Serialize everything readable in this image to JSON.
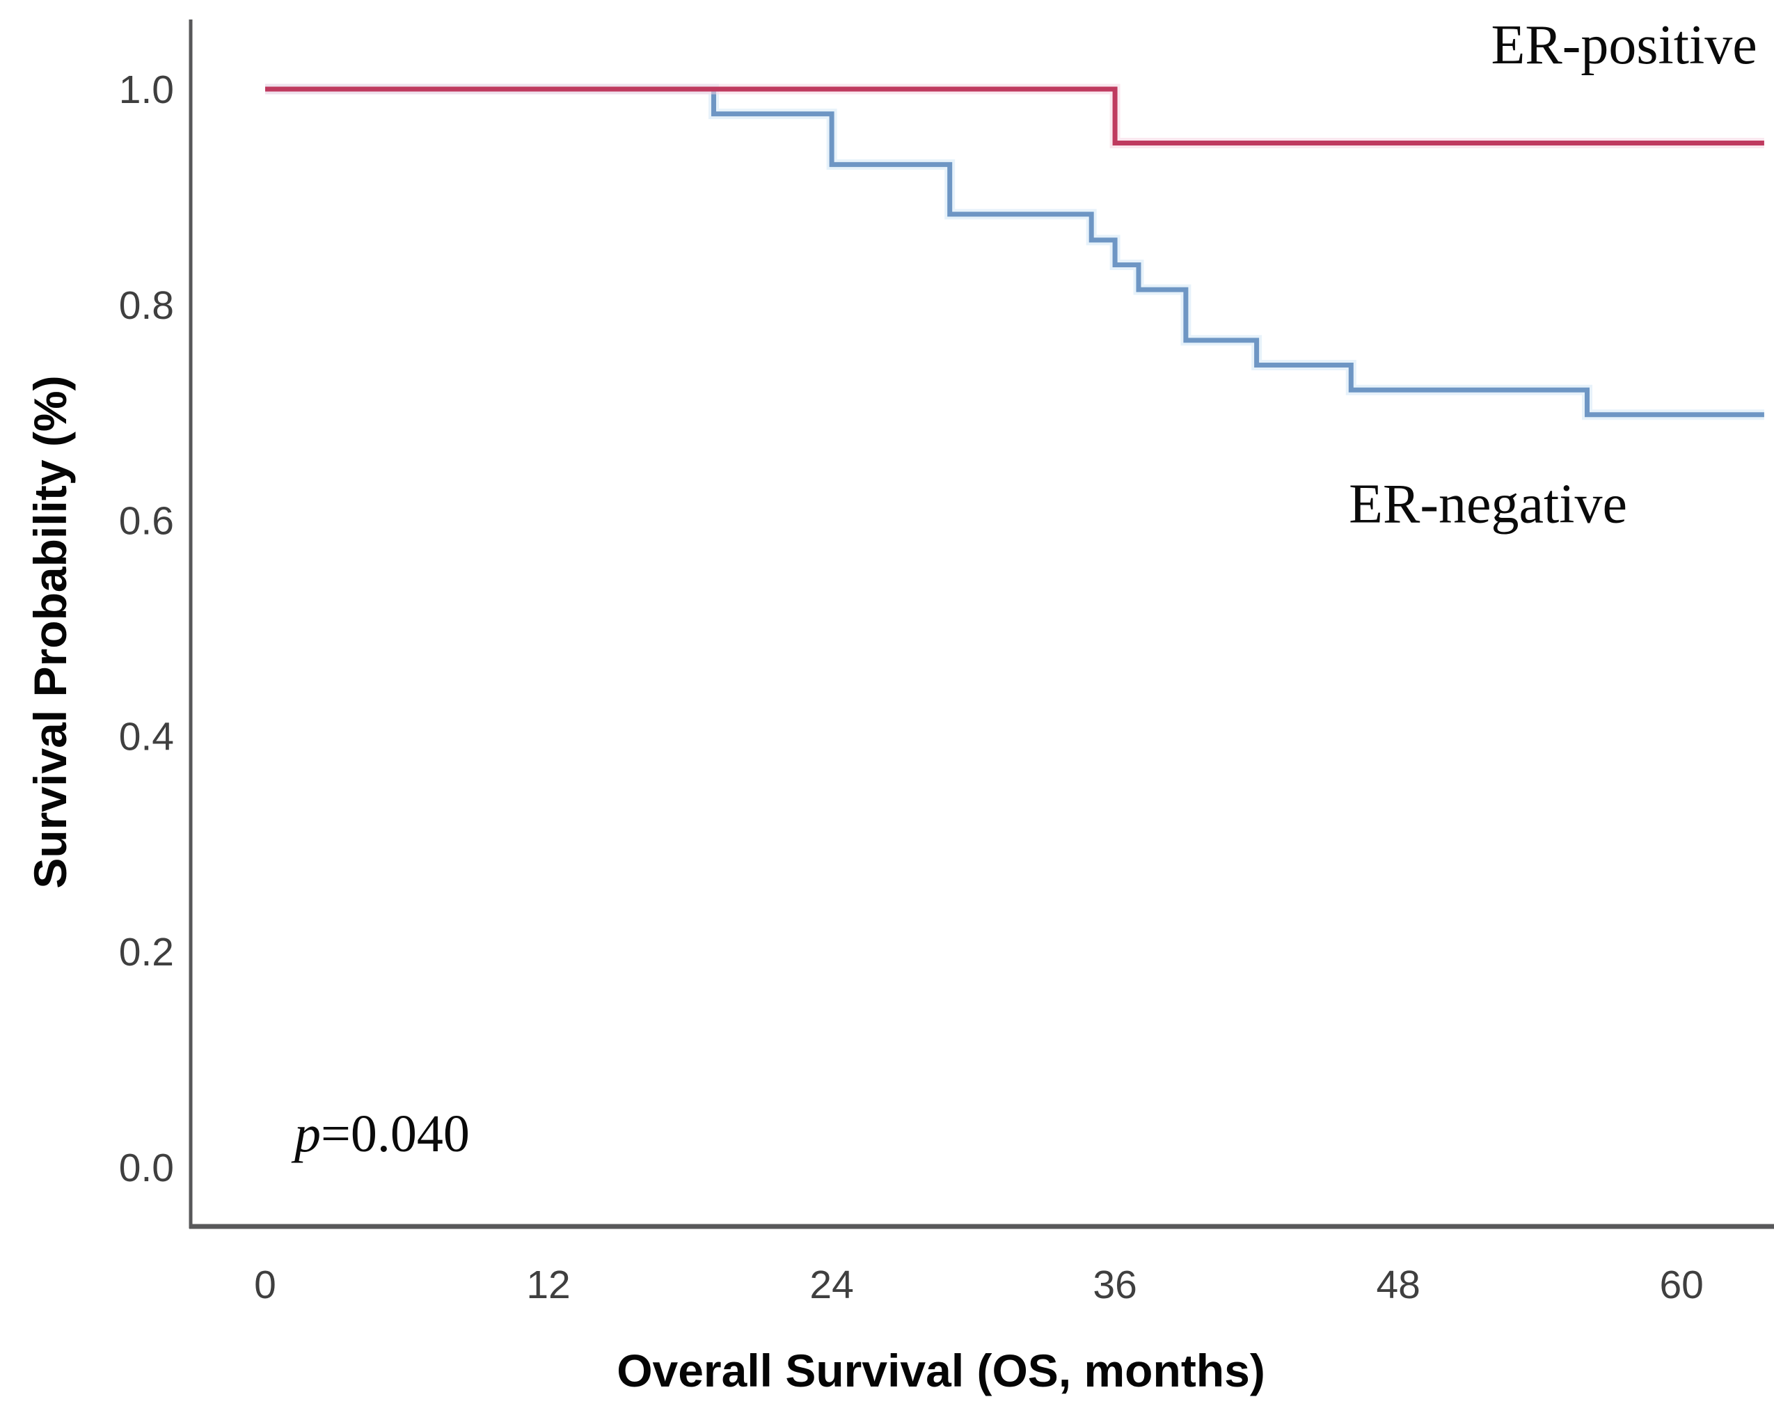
{
  "chart_data": {
    "type": "line",
    "variant": "kaplan-meier-step",
    "title": "",
    "xlabel": "Overall Survival (OS, months)",
    "ylabel": "Survival Probability (%)",
    "xlim": [
      0,
      63.5
    ],
    "ylim": [
      0.0,
      1.05
    ],
    "xticks": [
      "0",
      "12",
      "24",
      "36",
      "48",
      "60"
    ],
    "xtick_values": [
      0,
      12,
      24,
      36,
      48,
      60
    ],
    "yticks": [
      "0.0",
      "0.2",
      "0.4",
      "0.6",
      "0.8",
      "1.0"
    ],
    "ytick_values": [
      0.0,
      0.2,
      0.4,
      0.6,
      0.8,
      1.0
    ],
    "grid": false,
    "legend_position": "inline-annotations",
    "axis_color": "#58585a",
    "tick_label_color": "#3f3f3f",
    "p_value": {
      "italic": "p",
      "text": "=0.040"
    },
    "series": [
      {
        "name": "ER-negative",
        "color": "#6e96c4",
        "halo_color": "#d4e8f6",
        "points": [
          [
            0,
            1.0
          ],
          [
            19,
            1.0
          ],
          [
            19,
            0.977
          ],
          [
            24,
            0.977
          ],
          [
            24,
            0.93
          ],
          [
            29,
            0.93
          ],
          [
            29,
            0.884
          ],
          [
            35,
            0.884
          ],
          [
            35,
            0.86
          ],
          [
            36,
            0.86
          ],
          [
            36,
            0.837
          ],
          [
            37,
            0.837
          ],
          [
            37,
            0.814
          ],
          [
            39,
            0.814
          ],
          [
            39,
            0.767
          ],
          [
            42,
            0.767
          ],
          [
            42,
            0.744
          ],
          [
            46,
            0.744
          ],
          [
            46,
            0.721
          ],
          [
            56,
            0.721
          ],
          [
            56,
            0.698
          ],
          [
            63.5,
            0.698
          ]
        ]
      },
      {
        "name": "ER-positive",
        "color": "#bf3a5f",
        "halo_color": "#f6d6e2",
        "points": [
          [
            0,
            1.0
          ],
          [
            36,
            1.0
          ],
          [
            36,
            0.95
          ],
          [
            63.5,
            0.95
          ]
        ]
      }
    ],
    "annotations": [
      {
        "id": "er-positive-label",
        "text": "ER-positive",
        "x_months": 63.2,
        "y_prob": 1.024,
        "anchor": "end",
        "class": "serif-label"
      },
      {
        "id": "er-negative-label",
        "text": "ER-negative",
        "x_months": 51.8,
        "y_prob": 0.598,
        "anchor": "middle",
        "class": "serif-label"
      }
    ]
  }
}
